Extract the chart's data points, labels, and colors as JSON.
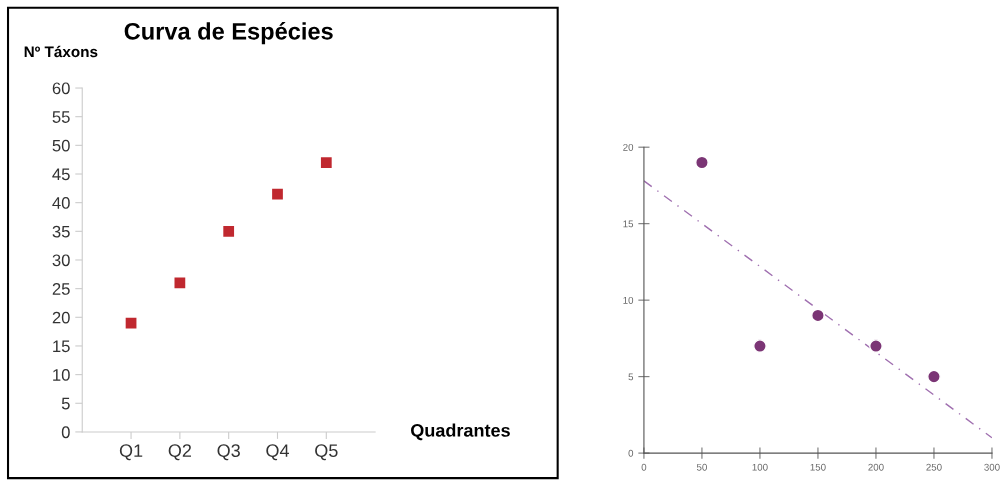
{
  "chart_data": [
    {
      "type": "scatter",
      "title": "Curva de Espécies",
      "ylabel": "Nº Táxons",
      "xlabel": "Quadrantes",
      "categories": [
        "Q1",
        "Q2",
        "Q3",
        "Q4",
        "Q5"
      ],
      "series": [
        {
          "color": "#c0282f",
          "values": [
            19,
            26,
            35,
            41.5,
            47
          ]
        }
      ],
      "marker": "square",
      "ylim": [
        0,
        60
      ],
      "yticks": [
        0,
        5,
        10,
        15,
        20,
        25,
        30,
        35,
        40,
        45,
        50,
        55,
        60
      ],
      "grid": false
    },
    {
      "type": "scatter",
      "series": [
        {
          "color": "#7b3575",
          "x": [
            50,
            100,
            150,
            200,
            250
          ],
          "values": [
            19,
            7,
            9,
            7,
            5
          ],
          "marker": "circle"
        },
        {
          "type": "line",
          "color": "#a070b0",
          "x": [
            0,
            300
          ],
          "values": [
            17.8,
            1.0
          ],
          "line_style": "dashed",
          "marker": "none"
        }
      ],
      "xlim": [
        0,
        300
      ],
      "ylim": [
        0,
        20
      ],
      "xticks": [
        0,
        50,
        100,
        150,
        200,
        250,
        300
      ],
      "yticks": [
        0,
        5,
        10,
        15,
        20
      ],
      "grid": false
    }
  ]
}
